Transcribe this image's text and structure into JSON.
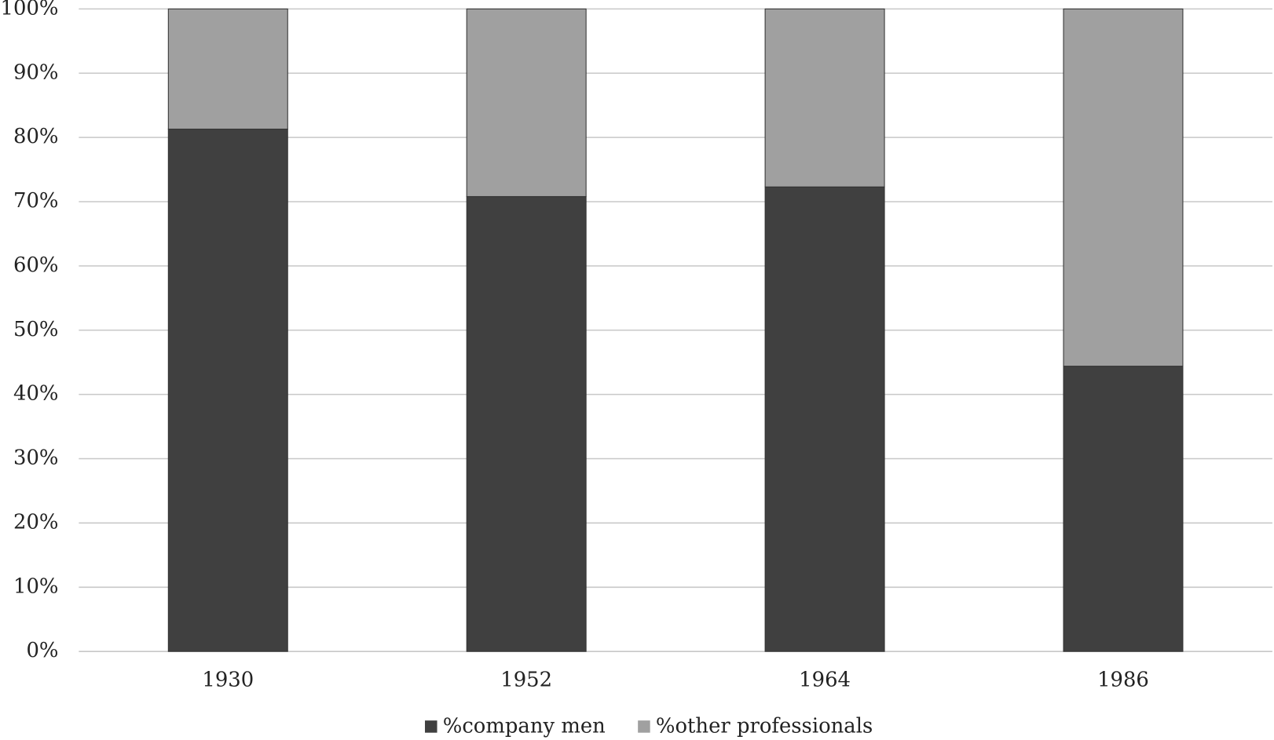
{
  "chart_data": {
    "type": "stacked-bar",
    "categories": [
      "1930",
      "1952",
      "1964",
      "1986"
    ],
    "series": [
      {
        "name": "%company men",
        "color": "#404040",
        "values": [
          81.3,
          70.8,
          72.3,
          44.4
        ]
      },
      {
        "name": "%other professionals",
        "color": "#a0a0a0",
        "values": [
          18.7,
          29.2,
          27.7,
          55.6
        ]
      }
    ],
    "ylim": [
      0,
      100
    ],
    "yticks": [
      {
        "value": 0,
        "label": "0%"
      },
      {
        "value": 10,
        "label": "10%"
      },
      {
        "value": 20,
        "label": "20%"
      },
      {
        "value": 30,
        "label": "30%"
      },
      {
        "value": 40,
        "label": "40%"
      },
      {
        "value": 50,
        "label": "50%"
      },
      {
        "value": 60,
        "label": "60%"
      },
      {
        "value": 70,
        "label": "70%"
      },
      {
        "value": 80,
        "label": "80%"
      },
      {
        "value": 90,
        "label": "90%"
      },
      {
        "value": 100,
        "label": "100%"
      }
    ],
    "grid": true,
    "legend": "bottom"
  }
}
